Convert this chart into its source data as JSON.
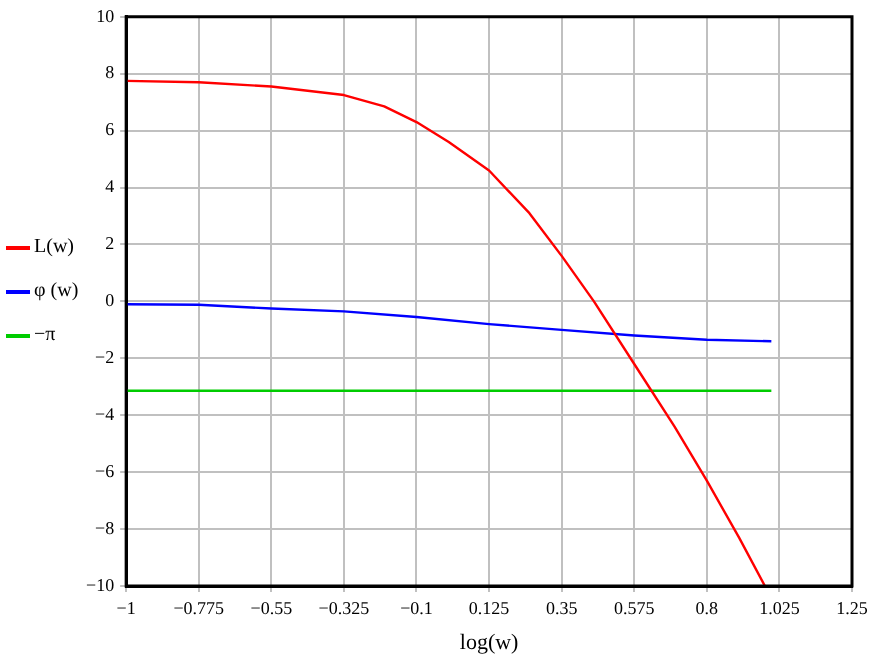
{
  "chart_data": {
    "type": "line",
    "xlabel": "log(w)",
    "x": [
      -1,
      -0.775,
      -0.55,
      -0.325,
      -0.2,
      -0.1,
      0,
      0.125,
      0.25,
      0.35,
      0.45,
      0.575,
      0.7,
      0.8,
      0.9,
      0.98
    ],
    "series": [
      {
        "name": "L(w)",
        "color": "#ff0000",
        "values": [
          7.75,
          7.7,
          7.55,
          7.25,
          6.85,
          6.3,
          5.6,
          4.6,
          3.1,
          1.6,
          0,
          -2.2,
          -4.4,
          -6.3,
          -8.3,
          -10
        ]
      },
      {
        "name": "φ (w)",
        "color": "#0000ff",
        "x": [
          -1,
          -0.775,
          -0.55,
          -0.325,
          -0.1,
          0.125,
          0.35,
          0.575,
          0.8,
          1
        ],
        "values": [
          -0.1,
          -0.12,
          -0.25,
          -0.35,
          -0.55,
          -0.8,
          -1.0,
          -1.2,
          -1.35,
          -1.4
        ]
      },
      {
        "name": "−π",
        "color": "#00cc00",
        "x": [
          -1,
          1
        ],
        "values": [
          -3.14,
          -3.14
        ]
      }
    ],
    "xlim": [
      -1,
      1.25
    ],
    "xticks": [
      -1,
      -0.775,
      -0.55,
      -0.325,
      -0.1,
      0.125,
      0.35,
      0.575,
      0.8,
      1.025,
      1.25
    ],
    "ylim": [
      -10,
      10
    ],
    "yticks": [
      -10,
      -8,
      -6,
      -4,
      -2,
      0,
      2,
      4,
      6,
      8,
      10
    ],
    "grid": true,
    "legend": "left",
    "marker": "none",
    "line_style": "solid"
  }
}
